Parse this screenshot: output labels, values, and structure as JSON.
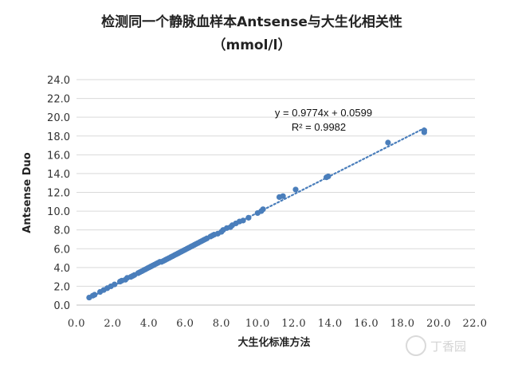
{
  "chart_data": {
    "type": "scatter",
    "title": "检测同一个静脉血样本Antsense与大生化相关性",
    "subtitle": "（mmol/l）",
    "xlabel": "大生化标准方法",
    "ylabel": "Antsense Duo",
    "xlim": [
      0,
      22
    ],
    "ylim": [
      0,
      24
    ],
    "x_ticks": [
      "0.0",
      "2.0",
      "4.0",
      "6.0",
      "8.0",
      "10.0",
      "12.0",
      "14.0",
      "16.0",
      "18.0",
      "20.0",
      "22.0"
    ],
    "y_ticks": [
      "0.0",
      "2.0",
      "4.0",
      "6.0",
      "8.0",
      "10.0",
      "12.0",
      "14.0",
      "16.0",
      "18.0",
      "20.0",
      "22.0",
      "24.0"
    ],
    "grid": "horizontal",
    "trendline": {
      "slope": 0.9774,
      "intercept": 0.0599,
      "style": "dotted"
    },
    "equation_label": "y = 0.9774x + 0.0599",
    "r2_label": "R² = 0.9982",
    "marker_color": "#4a7ebb",
    "series": [
      {
        "points": [
          [
            0.7,
            0.8
          ],
          [
            0.9,
            1.0
          ],
          [
            1.0,
            1.1
          ],
          [
            1.3,
            1.4
          ],
          [
            1.5,
            1.6
          ],
          [
            1.7,
            1.8
          ],
          [
            1.9,
            2.0
          ],
          [
            2.1,
            2.2
          ],
          [
            2.4,
            2.5
          ],
          [
            2.5,
            2.6
          ],
          [
            2.7,
            2.7
          ],
          [
            2.8,
            2.9
          ],
          [
            3.0,
            3.0
          ],
          [
            3.1,
            3.1
          ],
          [
            3.2,
            3.2
          ],
          [
            3.4,
            3.4
          ],
          [
            3.5,
            3.5
          ],
          [
            3.6,
            3.6
          ],
          [
            3.7,
            3.7
          ],
          [
            3.8,
            3.8
          ],
          [
            3.9,
            3.9
          ],
          [
            4.0,
            4.0
          ],
          [
            4.1,
            4.1
          ],
          [
            4.2,
            4.2
          ],
          [
            4.3,
            4.3
          ],
          [
            4.4,
            4.4
          ],
          [
            4.5,
            4.5
          ],
          [
            4.6,
            4.6
          ],
          [
            4.7,
            4.6
          ],
          [
            4.8,
            4.7
          ],
          [
            4.9,
            4.8
          ],
          [
            5.0,
            4.9
          ],
          [
            5.1,
            5.0
          ],
          [
            5.2,
            5.1
          ],
          [
            5.3,
            5.2
          ],
          [
            5.4,
            5.3
          ],
          [
            5.5,
            5.4
          ],
          [
            5.6,
            5.5
          ],
          [
            5.7,
            5.6
          ],
          [
            5.8,
            5.7
          ],
          [
            5.9,
            5.8
          ],
          [
            6.0,
            5.9
          ],
          [
            6.1,
            6.0
          ],
          [
            6.2,
            6.1
          ],
          [
            6.3,
            6.2
          ],
          [
            6.4,
            6.3
          ],
          [
            6.5,
            6.4
          ],
          [
            6.6,
            6.5
          ],
          [
            6.7,
            6.6
          ],
          [
            6.8,
            6.7
          ],
          [
            6.9,
            6.8
          ],
          [
            7.0,
            6.9
          ],
          [
            7.1,
            7.0
          ],
          [
            7.2,
            7.1
          ],
          [
            7.4,
            7.3
          ],
          [
            7.5,
            7.4
          ],
          [
            7.6,
            7.5
          ],
          [
            7.8,
            7.6
          ],
          [
            8.0,
            7.8
          ],
          [
            8.1,
            8.0
          ],
          [
            8.3,
            8.2
          ],
          [
            8.5,
            8.3
          ],
          [
            8.6,
            8.5
          ],
          [
            8.8,
            8.7
          ],
          [
            9.0,
            8.9
          ],
          [
            9.2,
            9.0
          ],
          [
            9.5,
            9.3
          ],
          [
            10.0,
            9.8
          ],
          [
            10.2,
            10.0
          ],
          [
            10.3,
            10.2
          ],
          [
            11.2,
            11.5
          ],
          [
            11.4,
            11.6
          ],
          [
            12.1,
            12.3
          ],
          [
            13.8,
            13.6
          ],
          [
            13.9,
            13.7
          ],
          [
            17.2,
            17.3
          ],
          [
            19.2,
            18.4
          ],
          [
            19.2,
            18.6
          ]
        ]
      }
    ]
  },
  "watermark": {
    "label": "丁香园"
  }
}
